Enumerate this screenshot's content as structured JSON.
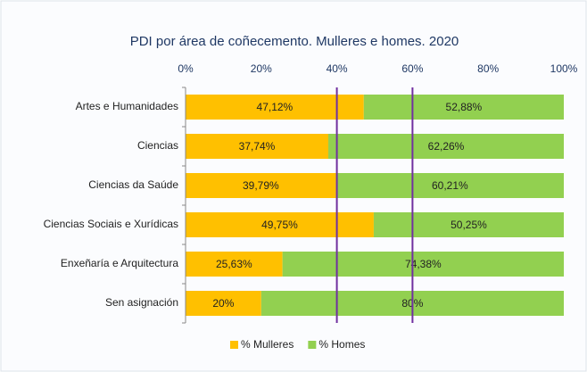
{
  "chart_data": {
    "type": "stacked_bar_horizontal",
    "title": "PDI  por área de coñecemento. Mulleres e homes. 2020",
    "categories": [
      "Artes e Humanidades",
      "Ciencias",
      "Ciencias da Saúde",
      "Ciencias Sociais e Xurídicas",
      "Enxeñaría e Arquitectura",
      "Sen asignación"
    ],
    "series": [
      {
        "name": "% Mulleres",
        "color": "#ffc000",
        "values": [
          47.12,
          37.74,
          39.79,
          49.75,
          25.63,
          20
        ],
        "value_labels": [
          "47,12%",
          "37,74%",
          "39,79%",
          "49,75%",
          "25,63%",
          "20%"
        ]
      },
      {
        "name": "% Homes",
        "color": "#92d050",
        "values": [
          52.88,
          62.26,
          60.21,
          50.25,
          74.38,
          80
        ],
        "value_labels": [
          "52,88%",
          "62,26%",
          "60,21%",
          "50,25%",
          "74,38%",
          "80%"
        ]
      }
    ],
    "xlim": [
      0,
      100
    ],
    "xticks": [
      {
        "value": 0,
        "label": "0%"
      },
      {
        "value": 20,
        "label": "20%"
      },
      {
        "value": 40,
        "label": "40%"
      },
      {
        "value": 60,
        "label": "60%"
      },
      {
        "value": 80,
        "label": "80%"
      },
      {
        "value": 100,
        "label": "100%"
      }
    ],
    "reference_lines": [
      40,
      60
    ],
    "reference_line_color": "#7030a0",
    "legend": "bottom"
  }
}
